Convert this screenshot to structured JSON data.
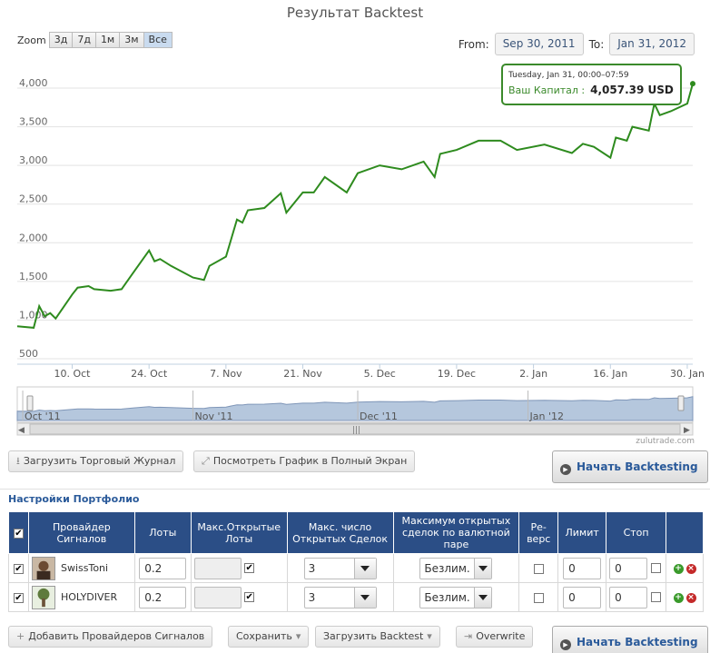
{
  "chart": {
    "title": "Результат Backtest",
    "zoom_label": "Zoom",
    "zoom_buttons": [
      "3д",
      "7д",
      "1м",
      "3м",
      "Все"
    ],
    "zoom_active": "Все",
    "from_label": "From:",
    "from_value": "Sep 30, 2011",
    "to_label": "To:",
    "to_value": "Jan 31, 2012",
    "tooltip_date": "Tuesday, Jan 31, 00:00–07:59",
    "tooltip_label": "Ваш Капитал :",
    "tooltip_value": "4,057.39 USD",
    "credits": "zulutrade.com",
    "navigator_labels": [
      "Oct '11",
      "Nov '11",
      "Dec '11",
      "Jan '12"
    ],
    "line_color": "#2e8b1e"
  },
  "chart_data": {
    "type": "line",
    "title": "Результат Backtest",
    "xlabel": "",
    "ylabel": "",
    "x_ticks": [
      "10. Oct",
      "24. Oct",
      "7. Nov",
      "21. Nov",
      "5. Dec",
      "19. Dec",
      "2. Jan",
      "16. Jan",
      "30. Jan"
    ],
    "y_ticks": [
      "500",
      "1,000",
      "1,500",
      "2,000",
      "2,500",
      "3,000",
      "3,500",
      "4,000"
    ],
    "ylim": [
      500,
      4000
    ],
    "grid": true,
    "series": [
      {
        "x": [
          "2011-09-30",
          "2011-10-03",
          "2011-10-04",
          "2011-10-05",
          "2011-10-06",
          "2011-10-07",
          "2011-10-10",
          "2011-10-11",
          "2011-10-13",
          "2011-10-14",
          "2011-10-17",
          "2011-10-19",
          "2011-10-21",
          "2011-10-24",
          "2011-10-25",
          "2011-10-26",
          "2011-10-28",
          "2011-11-01",
          "2011-11-03",
          "2011-11-04",
          "2011-11-07",
          "2011-11-09",
          "2011-11-10",
          "2011-11-11",
          "2011-11-14",
          "2011-11-17",
          "2011-11-18",
          "2011-11-21",
          "2011-11-23",
          "2011-11-25",
          "2011-11-29",
          "2011-12-01",
          "2011-12-05",
          "2011-12-09",
          "2011-12-13",
          "2011-12-15",
          "2011-12-16",
          "2011-12-19",
          "2011-12-23",
          "2011-12-27",
          "2011-12-30",
          "2012-01-04",
          "2012-01-09",
          "2012-01-11",
          "2012-01-13",
          "2012-01-16",
          "2012-01-17",
          "2012-01-19",
          "2012-01-20",
          "2012-01-23",
          "2012-01-24",
          "2012-01-25",
          "2012-01-27",
          "2012-01-30",
          "2012-01-31"
        ],
        "y": [
          920,
          900,
          1180,
          1050,
          1090,
          1020,
          1330,
          1420,
          1440,
          1400,
          1380,
          1400,
          1600,
          1900,
          1760,
          1790,
          1700,
          1550,
          1520,
          1700,
          1820,
          2300,
          2260,
          2420,
          2450,
          2640,
          2390,
          2650,
          2650,
          2850,
          2650,
          2900,
          3000,
          2950,
          3050,
          2850,
          3150,
          3200,
          3320,
          3320,
          3200,
          3270,
          3160,
          3280,
          3240,
          3100,
          3360,
          3320,
          3500,
          3450,
          3800,
          3650,
          3700,
          3800,
          4057.39
        ]
      }
    ]
  },
  "toolbar": {
    "load_journal": "Загрузить Торговый Журнал",
    "fullscreen": "Посмотреть График в Полный Экран",
    "start_backtest": "Начать Backtesting"
  },
  "portfolio": {
    "title": "Настройки Портфолио",
    "columns": [
      "Провайдер Сигналов",
      "Лоты",
      "Макс.Открытые Лоты",
      "Макс. число Открытых Сделок",
      "Максимум открытых сделок по валютной паре",
      "Ре-верс",
      "Лимит",
      "Стоп"
    ],
    "rows": [
      {
        "name": "SwissToni",
        "lots": "0.2",
        "max_open_lots": "",
        "max_trades": "3",
        "max_pair": "Безлим.",
        "limit": "0",
        "stop": "0"
      },
      {
        "name": "HOLYDIVER",
        "lots": "0.2",
        "max_open_lots": "",
        "max_trades": "3",
        "max_pair": "Безлим.",
        "limit": "0",
        "stop": "0"
      }
    ]
  },
  "footer": {
    "add_providers": "Добавить Провайдеров Сигналов",
    "save": "Сохранить",
    "load_backtest": "Загрузить Backtest",
    "overwrite": "Overwrite",
    "start_backtest": "Начать Backtesting"
  }
}
